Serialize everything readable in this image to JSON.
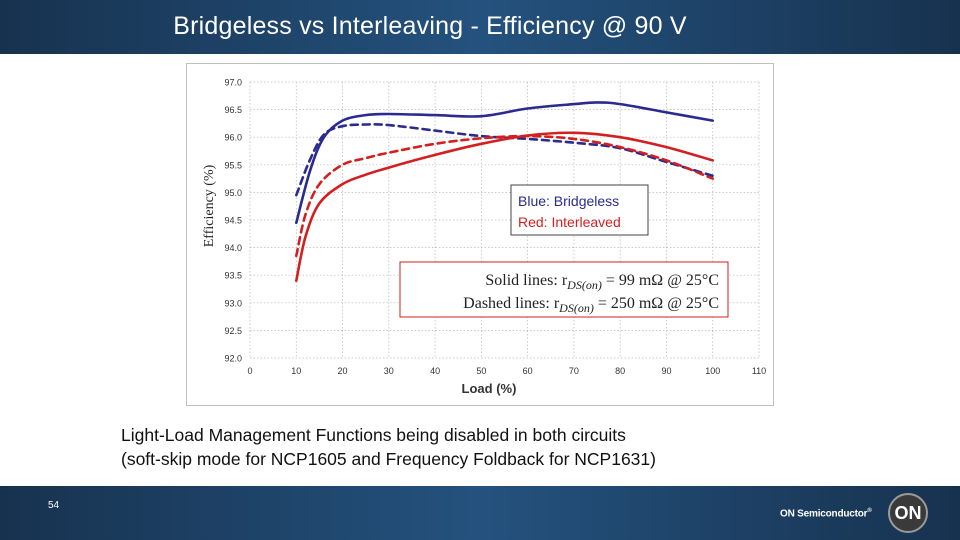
{
  "header": {
    "title": "Bridgeless vs Interleaving - Efficiency @ 90 V"
  },
  "caption": {
    "line1": "Light-Load Management Functions being disabled in both circuits",
    "line2": "(soft-skip mode for NCP1605 and Frequency Foldback for NCP1631)"
  },
  "footer": {
    "page_number": "54",
    "brand": "ON Semiconductor",
    "logo_text": "ON"
  },
  "chart_data": {
    "type": "line",
    "xlabel": "Load (%)",
    "ylabel": "Efficiency (%)",
    "xlim": [
      0,
      110
    ],
    "ylim": [
      92.0,
      97.0
    ],
    "xticks": [
      "0",
      "10",
      "20",
      "30",
      "40",
      "50",
      "60",
      "70",
      "80",
      "90",
      "100",
      "110"
    ],
    "yticks": [
      "92.0",
      "92.5",
      "93.0",
      "93.5",
      "94.0",
      "94.5",
      "95.0",
      "95.5",
      "96.0",
      "96.5",
      "97.0"
    ],
    "grid": true,
    "legend": {
      "line1": "Blue: Bridgeless",
      "line2": "Red: Interleaved",
      "line1_color": "#2b2b8f",
      "line2_color": "#d22020"
    },
    "annotation": {
      "solid_prefix": "Solid lines:  r",
      "solid_sub": "DS(on)",
      "solid_suffix": " = 99 mΩ @ 25°C",
      "dashed_prefix": "Dashed lines: r",
      "dashed_sub": "DS(on)",
      "dashed_suffix": " = 250 mΩ @ 25°C"
    },
    "series": [
      {
        "name": "Bridgeless, 99 mΩ",
        "color": "#2b2b8f",
        "dash": false,
        "x": [
          10,
          13,
          16,
          20,
          25,
          30,
          40,
          50,
          60,
          70,
          75,
          80,
          90,
          100
        ],
        "y": [
          94.45,
          95.4,
          96.0,
          96.3,
          96.4,
          96.42,
          96.4,
          96.38,
          96.52,
          96.6,
          96.63,
          96.6,
          96.45,
          96.3
        ]
      },
      {
        "name": "Bridgeless, 250 mΩ",
        "color": "#2b2b8f",
        "dash": true,
        "x": [
          10,
          13,
          16,
          20,
          25,
          30,
          40,
          50,
          60,
          70,
          80,
          90,
          100
        ],
        "y": [
          94.95,
          95.6,
          96.05,
          96.2,
          96.23,
          96.22,
          96.12,
          96.02,
          95.97,
          95.9,
          95.8,
          95.55,
          95.3
        ]
      },
      {
        "name": "Interleaved, 99 mΩ",
        "color": "#d22020",
        "dash": false,
        "x": [
          10,
          12,
          15,
          20,
          25,
          30,
          40,
          50,
          60,
          70,
          80,
          90,
          100
        ],
        "y": [
          93.4,
          94.2,
          94.8,
          95.15,
          95.32,
          95.45,
          95.68,
          95.88,
          96.03,
          96.08,
          96.0,
          95.82,
          95.58
        ]
      },
      {
        "name": "Interleaved, 250 mΩ",
        "color": "#d22020",
        "dash": true,
        "x": [
          10,
          12,
          15,
          20,
          25,
          30,
          40,
          50,
          60,
          70,
          80,
          90,
          100
        ],
        "y": [
          93.85,
          94.6,
          95.15,
          95.5,
          95.62,
          95.72,
          95.88,
          95.98,
          96.02,
          95.97,
          95.82,
          95.58,
          95.25
        ]
      }
    ]
  }
}
